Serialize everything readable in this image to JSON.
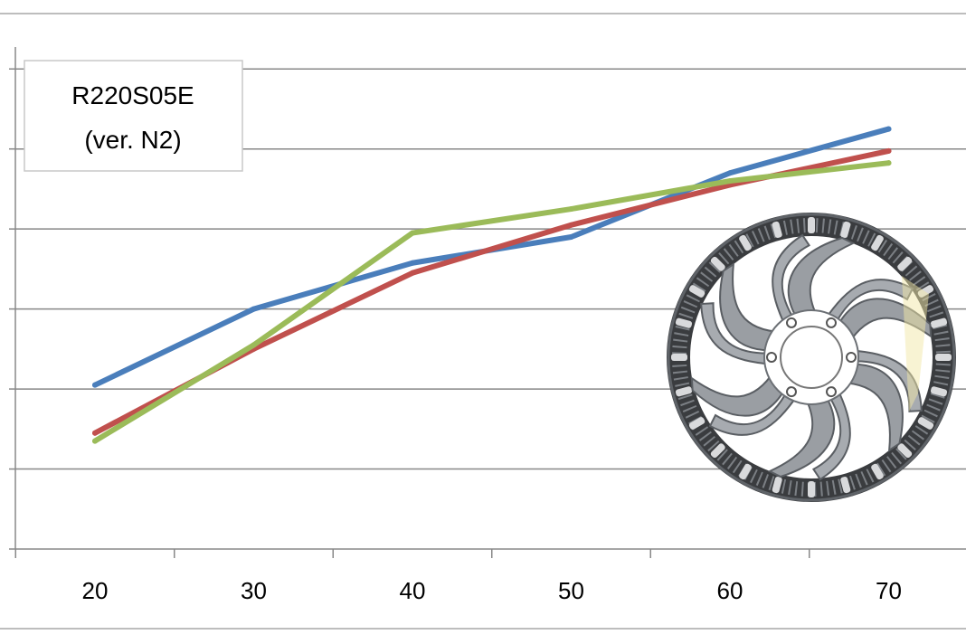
{
  "chart_data": {
    "type": "line",
    "categories": [
      "20",
      "30",
      "40",
      "50",
      "60",
      "70"
    ],
    "x": [
      20,
      30,
      40,
      50,
      60,
      70
    ],
    "series": [
      {
        "color": "#4a7ebb",
        "values": [
          41,
          60,
          71.5,
          78,
          94,
          105
        ]
      },
      {
        "color": "#c0504d",
        "values": [
          29,
          50,
          69,
          81,
          91,
          99.5
        ]
      },
      {
        "color": "#9bbb59",
        "values": [
          27,
          51,
          79,
          85,
          92,
          96.5
        ]
      }
    ],
    "ylim": [
      0,
      130
    ],
    "ygrid_step": 20,
    "grid": true,
    "annotation": {
      "line1": "R220S05E",
      "line2": "(ver. N2)"
    },
    "annotation_position": "top-left"
  },
  "picture": {
    "name": "brake-disc-rotor-image",
    "colors": {
      "metal": "#9a9ea3",
      "dark": "#3a3c3f",
      "highlight": "#f2e7a8"
    }
  }
}
